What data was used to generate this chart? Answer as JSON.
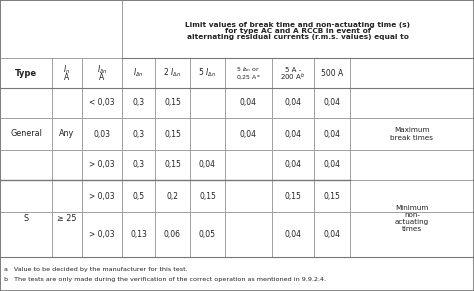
{
  "title_line1": "Limit values of break time and non-actuating time (s)",
  "title_line2": "for type AC and A RCCB in event of",
  "title_line3": "alternating residual currents (r.m.s. values) equal to",
  "col_edges": [
    0,
    52,
    82,
    122,
    155,
    190,
    225,
    272,
    314,
    350,
    474
  ],
  "row_edges_img": [
    0,
    58,
    88,
    118,
    150,
    180,
    212,
    257,
    291
  ],
  "footnote1": "a   Value to be decided by the manufacturer for this test.",
  "footnote2": "b   The tests are only made during the verification of the correct operation as mentioned in 9.9.2.4.",
  "line_color": "#999999",
  "text_color": "#222222",
  "bg_color": "#ffffff"
}
